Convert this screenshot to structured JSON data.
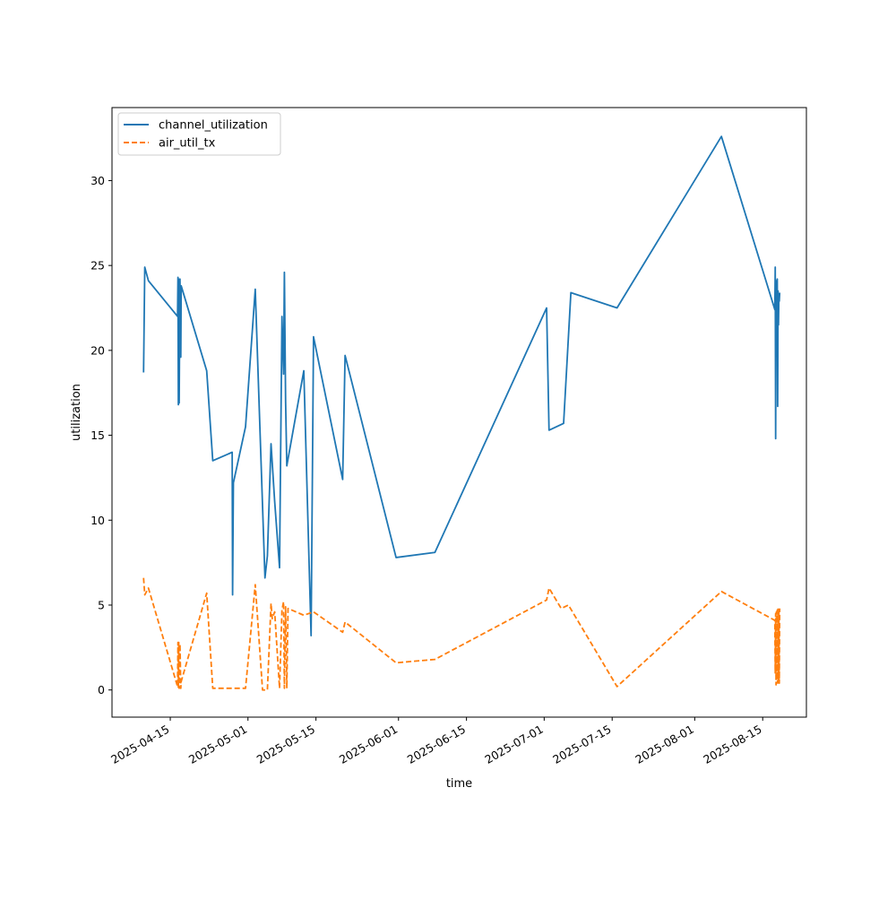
{
  "chart_data": {
    "type": "line",
    "title": "",
    "xlabel": "time",
    "ylabel": "utilization",
    "x_type": "date",
    "xlim": [
      "2025-04-03",
      "2025-08-24"
    ],
    "ylim": [
      -1.6,
      34.3
    ],
    "x_ticks": [
      "2025-04-15",
      "2025-05-01",
      "2025-05-15",
      "2025-06-01",
      "2025-06-15",
      "2025-07-01",
      "2025-07-15",
      "2025-08-01",
      "2025-08-15"
    ],
    "y_ticks": [
      0,
      5,
      10,
      15,
      20,
      25,
      30
    ],
    "grid": false,
    "legend": "upper-left",
    "series": [
      {
        "name": "channel_utilization",
        "color": "#1f77b4",
        "style": "solid",
        "points": [
          [
            "2025-04-09T12:00",
            18.7
          ],
          [
            "2025-04-09T18:00",
            24.9
          ],
          [
            "2025-04-10T12:00",
            24.1
          ],
          [
            "2025-04-16T12:00",
            22.0
          ],
          [
            "2025-04-16T14:00",
            24.3
          ],
          [
            "2025-04-16T16:00",
            16.8
          ],
          [
            "2025-04-16T18:00",
            24.2
          ],
          [
            "2025-04-16T20:00",
            16.9
          ],
          [
            "2025-04-17T00:00",
            24.2
          ],
          [
            "2025-04-17T04:00",
            19.6
          ],
          [
            "2025-04-17T06:00",
            23.8
          ],
          [
            "2025-04-22T12:00",
            18.8
          ],
          [
            "2025-04-23T18:00",
            13.5
          ],
          [
            "2025-04-27T18:00",
            14.0
          ],
          [
            "2025-04-27T20:00",
            5.6
          ],
          [
            "2025-04-28T00:00",
            12.2
          ],
          [
            "2025-04-30T12:00",
            15.5
          ],
          [
            "2025-05-02T12:00",
            23.6
          ],
          [
            "2025-05-04T12:00",
            6.6
          ],
          [
            "2025-05-05T00:00",
            7.9
          ],
          [
            "2025-05-05T18:00",
            14.5
          ],
          [
            "2025-05-06T12:00",
            11.1
          ],
          [
            "2025-05-07T12:00",
            7.2
          ],
          [
            "2025-05-08T00:00",
            22.0
          ],
          [
            "2025-05-08T08:00",
            18.6
          ],
          [
            "2025-05-08T12:00",
            24.6
          ],
          [
            "2025-05-08T18:00",
            17.0
          ],
          [
            "2025-05-09T00:00",
            13.2
          ],
          [
            "2025-05-12T12:00",
            18.8
          ],
          [
            "2025-05-14T00:00",
            3.2
          ],
          [
            "2025-05-14T12:00",
            20.8
          ],
          [
            "2025-05-20T12:00",
            12.4
          ],
          [
            "2025-05-21T00:00",
            19.7
          ],
          [
            "2025-05-31T12:00",
            7.8
          ],
          [
            "2025-06-08T12:00",
            8.1
          ],
          [
            "2025-07-01T12:00",
            22.5
          ],
          [
            "2025-07-02T00:00",
            15.3
          ],
          [
            "2025-07-05T00:00",
            15.7
          ],
          [
            "2025-07-06T12:00",
            23.4
          ],
          [
            "2025-07-16T00:00",
            22.5
          ],
          [
            "2025-08-06T12:00",
            32.6
          ],
          [
            "2025-08-17T12:00",
            22.4
          ],
          [
            "2025-08-17T14:00",
            24.9
          ],
          [
            "2025-08-17T16:00",
            14.8
          ],
          [
            "2025-08-17T18:00",
            23.0
          ],
          [
            "2025-08-17T20:00",
            24.1
          ],
          [
            "2025-08-17T22:00",
            20.0
          ],
          [
            "2025-08-18T00:00",
            24.2
          ],
          [
            "2025-08-18T02:00",
            16.7
          ],
          [
            "2025-08-18T04:00",
            23.5
          ],
          [
            "2025-08-18T06:00",
            21.5
          ],
          [
            "2025-08-18T08:00",
            23.2
          ],
          [
            "2025-08-18T10:00",
            22.9
          ],
          [
            "2025-08-18T12:00",
            23.4
          ]
        ]
      },
      {
        "name": "air_util_tx",
        "color": "#ff7f0e",
        "style": "dashed",
        "points": [
          [
            "2025-04-09T12:00",
            6.6
          ],
          [
            "2025-04-09T18:00",
            5.6
          ],
          [
            "2025-04-10T12:00",
            6.0
          ],
          [
            "2025-04-16T12:00",
            0.2
          ],
          [
            "2025-04-16T14:00",
            2.8
          ],
          [
            "2025-04-16T16:00",
            0.1
          ],
          [
            "2025-04-16T18:00",
            2.8
          ],
          [
            "2025-04-16T20:00",
            0.1
          ],
          [
            "2025-04-17T00:00",
            2.7
          ],
          [
            "2025-04-17T04:00",
            0.1
          ],
          [
            "2025-04-17T06:00",
            0.5
          ],
          [
            "2025-04-22T12:00",
            5.7
          ],
          [
            "2025-04-23T18:00",
            0.1
          ],
          [
            "2025-04-27T18:00",
            0.1
          ],
          [
            "2025-04-30T12:00",
            0.1
          ],
          [
            "2025-05-02T12:00",
            6.2
          ],
          [
            "2025-05-04T00:00",
            0.0
          ],
          [
            "2025-05-05T00:00",
            0.0
          ],
          [
            "2025-05-05T18:00",
            5.1
          ],
          [
            "2025-05-06T00:00",
            4.2
          ],
          [
            "2025-05-06T12:00",
            4.6
          ],
          [
            "2025-05-07T12:00",
            0.1
          ],
          [
            "2025-05-08T00:00",
            4.7
          ],
          [
            "2025-05-08T08:00",
            5.2
          ],
          [
            "2025-05-08T12:00",
            0.1
          ],
          [
            "2025-05-08T18:00",
            4.9
          ],
          [
            "2025-05-09T00:00",
            0.1
          ],
          [
            "2025-05-09T06:00",
            4.8
          ],
          [
            "2025-05-12T12:00",
            4.4
          ],
          [
            "2025-05-14T12:00",
            4.6
          ],
          [
            "2025-05-20T12:00",
            3.4
          ],
          [
            "2025-05-21T00:00",
            4.0
          ],
          [
            "2025-05-31T12:00",
            1.6
          ],
          [
            "2025-06-08T12:00",
            1.8
          ],
          [
            "2025-07-01T12:00",
            5.3
          ],
          [
            "2025-07-02T00:00",
            6.0
          ],
          [
            "2025-07-04T12:00",
            4.8
          ],
          [
            "2025-07-06T00:00",
            5.0
          ],
          [
            "2025-07-16T00:00",
            0.2
          ],
          [
            "2025-08-06T12:00",
            5.8
          ],
          [
            "2025-08-17T12:00",
            4.1
          ],
          [
            "2025-08-17T14:00",
            1.0
          ],
          [
            "2025-08-17T16:00",
            4.5
          ],
          [
            "2025-08-17T18:00",
            0.3
          ],
          [
            "2025-08-17T20:00",
            4.6
          ],
          [
            "2025-08-17T22:00",
            0.6
          ],
          [
            "2025-08-18T00:00",
            4.7
          ],
          [
            "2025-08-18T02:00",
            0.4
          ],
          [
            "2025-08-18T04:00",
            4.8
          ],
          [
            "2025-08-18T06:00",
            0.5
          ],
          [
            "2025-08-18T08:00",
            4.6
          ],
          [
            "2025-08-18T10:00",
            0.4
          ],
          [
            "2025-08-18T12:00",
            4.8
          ]
        ]
      }
    ]
  }
}
